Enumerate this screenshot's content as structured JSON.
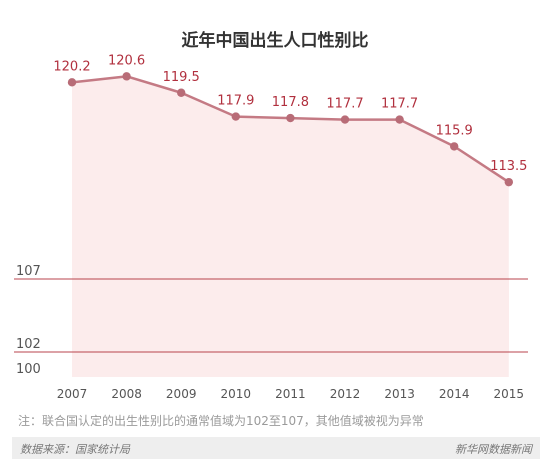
{
  "title": "近年中国出生人口性别比",
  "note": "注：联合国认定的出生性别比的通常值域为102至107，其他值域被视为异常",
  "footer": {
    "source": "数据来源：国家统计局",
    "brand": "新华网数据新闻"
  },
  "colors": {
    "line": "#c47a84",
    "point": "#b86c77",
    "label": "#b1303e",
    "area": "#fcecec",
    "normal_band": "#f7dcdd",
    "ref_line": "#b8434c",
    "axis_text": "#555555"
  },
  "chart_data": {
    "type": "line",
    "title": "近年中国出生人口性别比",
    "x": [
      "2007",
      "2008",
      "2009",
      "2010",
      "2011",
      "2012",
      "2013",
      "2014",
      "2015"
    ],
    "series": [
      {
        "values": [
          120.2,
          120.6,
          119.5,
          117.9,
          117.8,
          117.7,
          117.7,
          115.9,
          113.5
        ]
      }
    ],
    "y_ticks": [
      "100",
      "102",
      "107"
    ],
    "reference_lines": [
      102,
      107
    ],
    "normal_range": [
      102,
      107
    ],
    "grid": false
  }
}
